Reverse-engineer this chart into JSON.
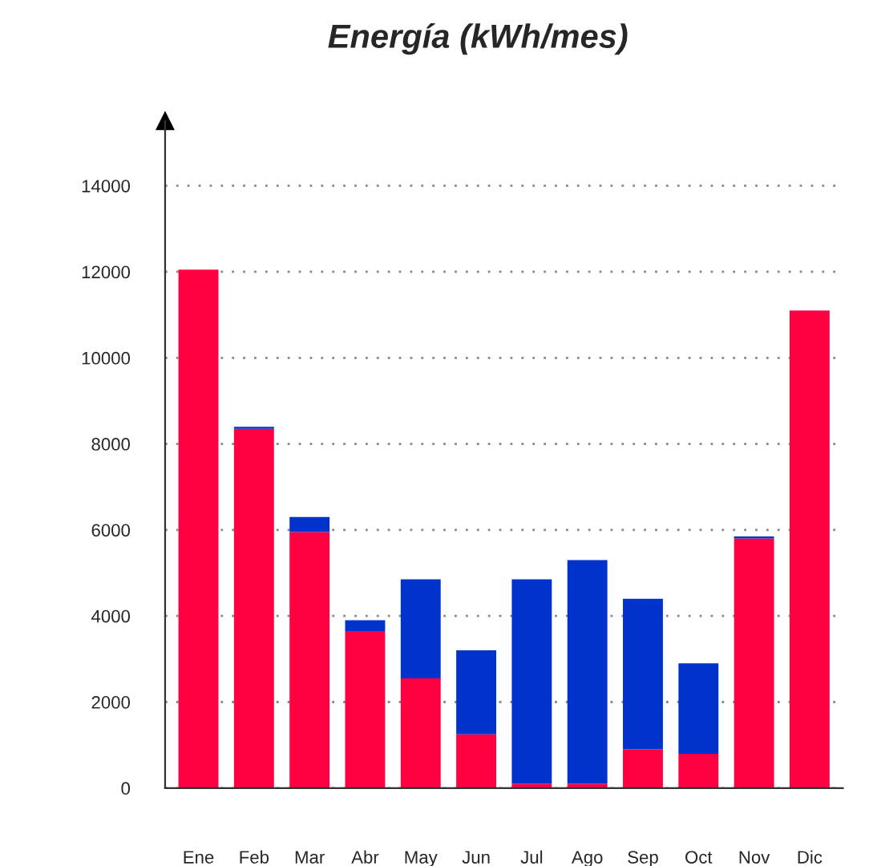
{
  "chart_data": {
    "type": "bar",
    "title": "Energía (kWh/mes)",
    "stacked": true,
    "categories": [
      "Ene",
      "Feb",
      "Mar",
      "Abr",
      "May",
      "Jun",
      "Jul",
      "Ago",
      "Sep",
      "Oct",
      "Nov",
      "Dic"
    ],
    "series": [
      {
        "color": "#ff0040",
        "values": [
          12050,
          8350,
          5950,
          3650,
          2550,
          1250,
          100,
          100,
          900,
          800,
          5800,
          11100
        ]
      },
      {
        "color": "#0033cc",
        "values": [
          0,
          50,
          350,
          250,
          2300,
          1950,
          4750,
          5200,
          3500,
          2100,
          50,
          0
        ]
      }
    ],
    "ylim": [
      0,
      15500
    ],
    "yticks": [
      0,
      2000,
      4000,
      6000,
      8000,
      10000,
      12000,
      14000
    ],
    "grid": "y",
    "legend": false
  }
}
